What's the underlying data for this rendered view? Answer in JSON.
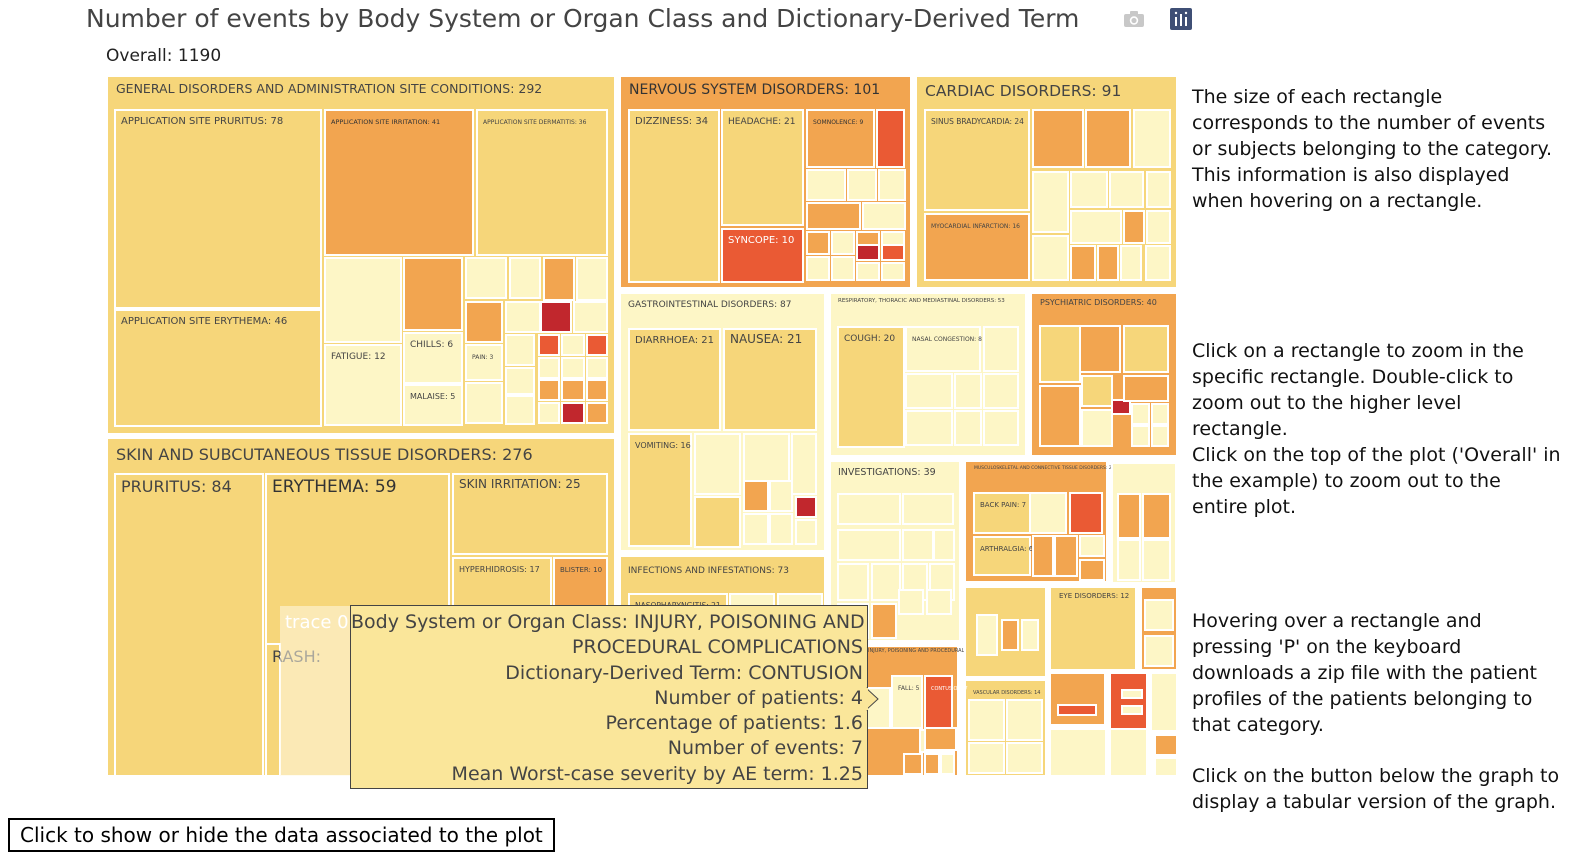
{
  "title": "Number of events by Body System or Organ Class and Dictionary-Derived Term",
  "overall_label": "Overall: 1190",
  "icons": {
    "camera": "camera-icon",
    "plotly": "plotly-logo-icon"
  },
  "colors": {
    "light": "#fdf6c6",
    "mid": "#f6d67a",
    "orange": "#f2a550",
    "red": "#ea5a34",
    "darkred": "#c1272d"
  },
  "side_notes": [
    "The size of each rectangle corresponds to the number of events or subjects belonging to the category.\nThis information is also displayed when hovering on a rectangle.",
    "Click on a rectangle to zoom in the specific rectangle. Double-click to zoom out to the higher level rectangle.\nClick on the top of the plot ('Overall' in the example) to zoom out to the entire plot.",
    "Hovering over a rectangle and pressing 'P' on the keyboard downloads a zip file with the patient profiles of the patients belonging to that category.",
    "Click on the button below the graph to display a tabular version of the graph."
  ],
  "tooltip": {
    "trace": "trace 0",
    "lines": [
      "Body System or Organ Class: INJURY, POISONING AND",
      "PROCEDURAL COMPLICATIONS",
      "Dictionary-Derived Term: CONTUSION",
      "Number of patients: 4",
      "Percentage of patients: 1.6",
      "Number of events: 7",
      "Mean Worst-case severity by AE term: 1.25"
    ]
  },
  "button_label": "Click to show or hide the data associated to the plot",
  "chart_data": {
    "type": "treemap",
    "root": {
      "label": "Overall",
      "value": 1190
    },
    "groups": [
      {
        "label": "GENERAL DISORDERS AND ADMINISTRATION SITE CONDITIONS",
        "value": 292,
        "children": [
          {
            "label": "APPLICATION SITE PRURITUS",
            "value": 78
          },
          {
            "label": "APPLICATION SITE ERYTHEMA",
            "value": 46
          },
          {
            "label": "APPLICATION SITE IRRITATION",
            "value": 41
          },
          {
            "label": "APPLICATION SITE DERMATITIS",
            "value": 36
          },
          {
            "label": "FATIGUE",
            "value": 12
          },
          {
            "label": "CHILLS",
            "value": 6
          },
          {
            "label": "MALAISE",
            "value": 5
          },
          {
            "label": "PAIN",
            "value": 3
          }
        ]
      },
      {
        "label": "SKIN AND SUBCUTANEOUS TISSUE DISORDERS",
        "value": 276,
        "children": [
          {
            "label": "PRURITUS",
            "value": 84
          },
          {
            "label": "ERYTHEMA",
            "value": 59
          },
          {
            "label": "SKIN IRRITATION",
            "value": 25
          },
          {
            "label": "HYPERHIDROSIS",
            "value": 17
          },
          {
            "label": "BLISTER",
            "value": 10
          },
          {
            "label": "RASH",
            "value": null
          }
        ]
      },
      {
        "label": "NERVOUS SYSTEM DISORDERS",
        "value": 101,
        "children": [
          {
            "label": "DIZZINESS",
            "value": 34
          },
          {
            "label": "HEADACHE",
            "value": 21
          },
          {
            "label": "SYNCOPE",
            "value": 10
          },
          {
            "label": "SOMNOLENCE",
            "value": 9
          }
        ]
      },
      {
        "label": "CARDIAC DISORDERS",
        "value": 91,
        "children": [
          {
            "label": "SINUS BRADYCARDIA",
            "value": 24
          },
          {
            "label": "MYOCARDIAL INFARCTION",
            "value": 16
          }
        ]
      },
      {
        "label": "GASTROINTESTINAL DISORDERS",
        "value": 87,
        "children": [
          {
            "label": "DIARRHOEA",
            "value": 21
          },
          {
            "label": "NAUSEA",
            "value": 21
          },
          {
            "label": "VOMITING",
            "value": 16
          }
        ]
      },
      {
        "label": "RESPIRATORY, THORACIC AND MEDIASTINAL DISORDERS",
        "value": 53,
        "children": [
          {
            "label": "COUGH",
            "value": 20
          },
          {
            "label": "NASAL CONGESTION",
            "value": 8
          }
        ]
      },
      {
        "label": "PSYCHIATRIC DISORDERS",
        "value": 40,
        "children": []
      },
      {
        "label": "INFECTIONS AND INFESTATIONS",
        "value": 73,
        "children": [
          {
            "label": "NASOPHARYNGITIS",
            "value": 21
          }
        ]
      },
      {
        "label": "INVESTIGATIONS",
        "value": 39,
        "children": []
      },
      {
        "label": "MUSCULOSKELETAL AND CONNECTIVE TISSUE DISORDERS",
        "value": 26,
        "children": [
          {
            "label": "BACK PAIN",
            "value": 7
          },
          {
            "label": "ARTHRALGIA",
            "value": 6
          }
        ]
      },
      {
        "label": "EYE DISORDERS",
        "value": 12,
        "children": []
      },
      {
        "label": "INJURY, POISONING AND PROCEDURAL COMPLICATIONS",
        "value": null,
        "children": [
          {
            "label": "FALL",
            "value": 5
          },
          {
            "label": "CONTUSION",
            "value": 7
          },
          {
            "label": "WOUND",
            "value": 3
          }
        ]
      },
      {
        "label": "VASCULAR DISORDERS",
        "value": 14,
        "children": []
      }
    ]
  }
}
